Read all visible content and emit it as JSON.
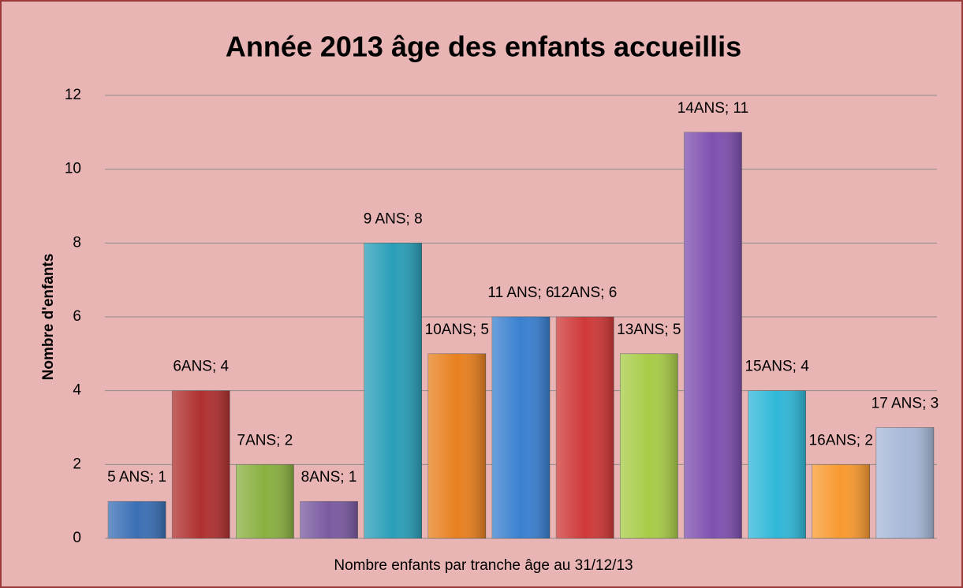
{
  "chart_data": {
    "type": "bar",
    "title": "Année 2013 âge des enfants accueillis",
    "x_label": "Nombre enfants par tranche âge au 31/12/13",
    "y_label": "Nombre d'enfants",
    "categories": [
      null,
      null,
      null,
      null,
      null,
      null,
      null,
      null,
      null,
      null,
      null,
      null,
      null
    ],
    "values": [
      1,
      4,
      2,
      1,
      8,
      5,
      6,
      6,
      5,
      11,
      4,
      2,
      3
    ],
    "value_labels": [
      "5 ANS; 1",
      "6ANS; 4",
      "7ANS; 2",
      "8ANS; 1",
      "9 ANS; 8",
      "10ANS; 5",
      "11 ANS; 6",
      "12ANS; 6",
      "13ANS; 5",
      "14ANS; 11",
      "15ANS; 4",
      "16ANS; 2",
      "17 ANS; 3"
    ],
    "colors": [
      "#3a6fb5",
      "#b03030",
      "#8ab040",
      "#7a5aa0",
      "#2a9fb8",
      "#e8801f",
      "#3a80d0",
      "#d03838",
      "#a8cc48",
      "#7f50b0",
      "#30b8d8",
      "#f89a30",
      "#a8b8d8"
    ],
    "ylim": [
      0,
      12
    ],
    "yticks": [
      0,
      2,
      4,
      6,
      8,
      10,
      12
    ],
    "grid": true
  }
}
